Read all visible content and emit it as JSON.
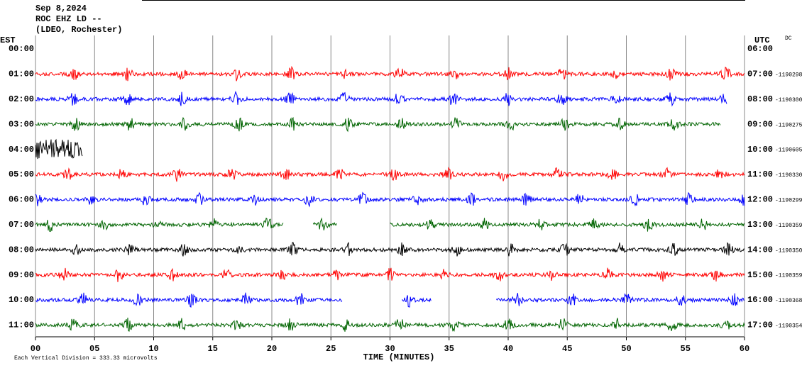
{
  "chart_data": {
    "type": "helicorder",
    "title_lines": [
      "Sep 8,2024",
      "ROC EHZ LD --",
      "(LDEO, Rochester)"
    ],
    "left_axis_label": "EST",
    "right_axis_label": "UTC",
    "corner_label": "DC",
    "xlabel": "TIME (MINUTES)",
    "footnote": "Each Vertical Division =  333.33 microvolts",
    "xlim": [
      0,
      60
    ],
    "xticks": [
      {
        "value": 0,
        "label": "00"
      },
      {
        "value": 5,
        "label": "05"
      },
      10,
      15,
      20,
      25,
      30,
      35,
      40,
      45,
      50,
      55,
      60
    ],
    "rows": [
      {
        "left": "00:00",
        "right": "06:00",
        "color": "#ff0000",
        "segments": []
      },
      {
        "left": "01:00",
        "right": "07:00",
        "offset": "-1190298",
        "color": "#ff0000",
        "segments": [
          [
            0,
            60
          ]
        ]
      },
      {
        "left": "02:00",
        "right": "08:00",
        "offset": "-1190300",
        "color": "#0000ff",
        "segments": [
          [
            0,
            58.5
          ]
        ]
      },
      {
        "left": "03:00",
        "right": "09:00",
        "offset": "-1190275",
        "color": "#006400",
        "segments": [
          [
            0,
            58
          ]
        ]
      },
      {
        "left": "04:00",
        "right": "10:00",
        "offset": "-1190605",
        "color": "#000000",
        "segments": [
          [
            0,
            4
          ]
        ]
      },
      {
        "left": "05:00",
        "right": "11:00",
        "offset": "-1190330",
        "color": "#ff0000",
        "segments": [
          [
            0,
            60
          ]
        ]
      },
      {
        "left": "06:00",
        "right": "12:00",
        "offset": "-1190299",
        "color": "#0000ff",
        "segments": [
          [
            0,
            60
          ]
        ]
      },
      {
        "left": "07:00",
        "right": "13:00",
        "offset": "-1190359",
        "color": "#006400",
        "segments": [
          [
            0,
            21
          ],
          [
            23.5,
            25.5
          ],
          [
            30,
            60
          ]
        ]
      },
      {
        "left": "08:00",
        "right": "14:00",
        "offset": "-1190350",
        "color": "#000000",
        "segments": [
          [
            0,
            60
          ]
        ]
      },
      {
        "left": "09:00",
        "right": "15:00",
        "offset": "-1190359",
        "color": "#ff0000",
        "segments": [
          [
            0,
            60
          ]
        ]
      },
      {
        "left": "10:00",
        "right": "16:00",
        "offset": "-1190368",
        "color": "#0000ff",
        "segments": [
          [
            0,
            26
          ],
          [
            31,
            33.5
          ],
          [
            39,
            60
          ]
        ]
      },
      {
        "left": "11:00",
        "right": "17:00",
        "offset": "-1190354",
        "color": "#006400",
        "segments": [
          [
            0,
            60
          ]
        ]
      }
    ]
  }
}
